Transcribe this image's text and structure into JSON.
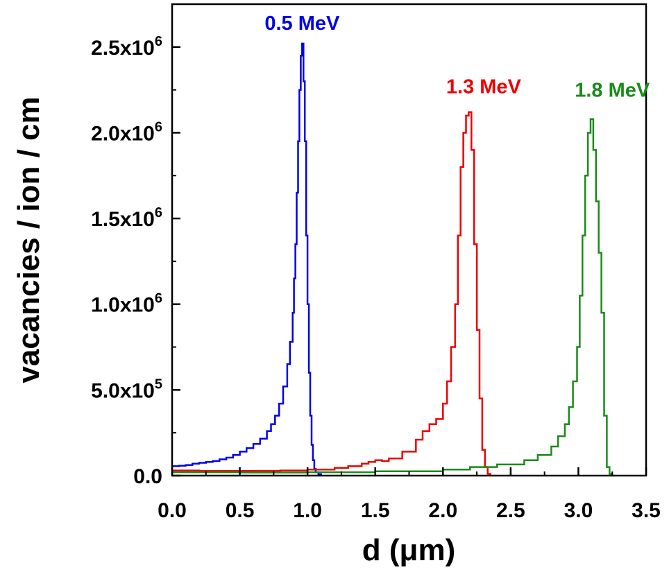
{
  "chart_data": {
    "type": "line",
    "xlabel": "d (μm)",
    "ylabel": "vacancies / ion / cm",
    "xlim": [
      0,
      3.5
    ],
    "ylim": [
      0,
      2750000
    ],
    "grid": false,
    "x_ticks": [
      {
        "value": 0.0,
        "label": "0.0"
      },
      {
        "value": 0.5,
        "label": "0.5"
      },
      {
        "value": 1.0,
        "label": "1.0"
      },
      {
        "value": 1.5,
        "label": "1.5"
      },
      {
        "value": 2.0,
        "label": "2.0"
      },
      {
        "value": 2.5,
        "label": "2.5"
      },
      {
        "value": 3.0,
        "label": "3.0"
      },
      {
        "value": 3.5,
        "label": "3.5"
      }
    ],
    "y_ticks": [
      {
        "value": 0,
        "mantissa": "0.0",
        "exp": ""
      },
      {
        "value": 500000,
        "mantissa": "5.0x10",
        "exp": "5"
      },
      {
        "value": 1000000,
        "mantissa": "1.0x10",
        "exp": "6"
      },
      {
        "value": 1500000,
        "mantissa": "1.5x10",
        "exp": "6"
      },
      {
        "value": 2000000,
        "mantissa": "2.0x10",
        "exp": "6"
      },
      {
        "value": 2500000,
        "mantissa": "2.5x10",
        "exp": "6"
      }
    ],
    "series": [
      {
        "name": "0.5 MeV",
        "color": "#0000ee",
        "label_at": [
          0.96,
          2600000
        ],
        "x": [
          0.0,
          0.05,
          0.1,
          0.15,
          0.2,
          0.25,
          0.3,
          0.35,
          0.4,
          0.45,
          0.5,
          0.55,
          0.6,
          0.65,
          0.7,
          0.73,
          0.76,
          0.79,
          0.82,
          0.85,
          0.87,
          0.89,
          0.9,
          0.91,
          0.92,
          0.93,
          0.94,
          0.95,
          0.96,
          0.97,
          0.98,
          0.99,
          1.0,
          1.01,
          1.02,
          1.03,
          1.04,
          1.05,
          1.06,
          1.08,
          1.1
        ],
        "y": [
          55000,
          58000,
          62000,
          70000,
          75000,
          80000,
          85000,
          95000,
          105000,
          120000,
          140000,
          160000,
          185000,
          215000,
          260000,
          300000,
          350000,
          420000,
          520000,
          650000,
          780000,
          950000,
          1150000,
          1350000,
          1650000,
          1950000,
          2250000,
          2450000,
          2520000,
          2300000,
          1950000,
          1400000,
          1000000,
          600000,
          350000,
          180000,
          90000,
          40000,
          20000,
          8000,
          0
        ]
      },
      {
        "name": "1.3 MeV",
        "color": "#ee0000",
        "label_at": [
          2.3,
          2230000
        ],
        "x": [
          0.0,
          0.2,
          0.4,
          0.6,
          0.8,
          1.0,
          1.2,
          1.3,
          1.4,
          1.45,
          1.5,
          1.55,
          1.6,
          1.7,
          1.8,
          1.85,
          1.9,
          1.95,
          2.0,
          2.03,
          2.06,
          2.09,
          2.11,
          2.13,
          2.15,
          2.17,
          2.19,
          2.21,
          2.23,
          2.25,
          2.27,
          2.29,
          2.31,
          2.33,
          2.35
        ],
        "y": [
          30000,
          28000,
          27000,
          28000,
          30000,
          35000,
          45000,
          55000,
          70000,
          80000,
          90000,
          85000,
          100000,
          140000,
          210000,
          260000,
          300000,
          330000,
          420000,
          550000,
          750000,
          1000000,
          1400000,
          1800000,
          2000000,
          2100000,
          2120000,
          1900000,
          1350000,
          850000,
          450000,
          150000,
          50000,
          10000,
          0
        ]
      },
      {
        "name": "1.8 MeV",
        "color": "#1a8a1a",
        "label_at": [
          3.25,
          2210000
        ],
        "x": [
          0.0,
          0.5,
          1.0,
          1.5,
          2.0,
          2.2,
          2.4,
          2.6,
          2.7,
          2.8,
          2.85,
          2.9,
          2.93,
          2.96,
          2.99,
          3.01,
          3.03,
          3.05,
          3.07,
          3.09,
          3.11,
          3.13,
          3.15,
          3.17,
          3.19,
          3.21,
          3.23,
          3.25
        ],
        "y": [
          20000,
          18000,
          20000,
          25000,
          35000,
          50000,
          65000,
          90000,
          120000,
          170000,
          230000,
          300000,
          400000,
          550000,
          750000,
          1050000,
          1400000,
          1750000,
          2000000,
          2080000,
          1900000,
          1600000,
          1300000,
          950000,
          350000,
          50000,
          10000,
          0
        ]
      }
    ]
  }
}
